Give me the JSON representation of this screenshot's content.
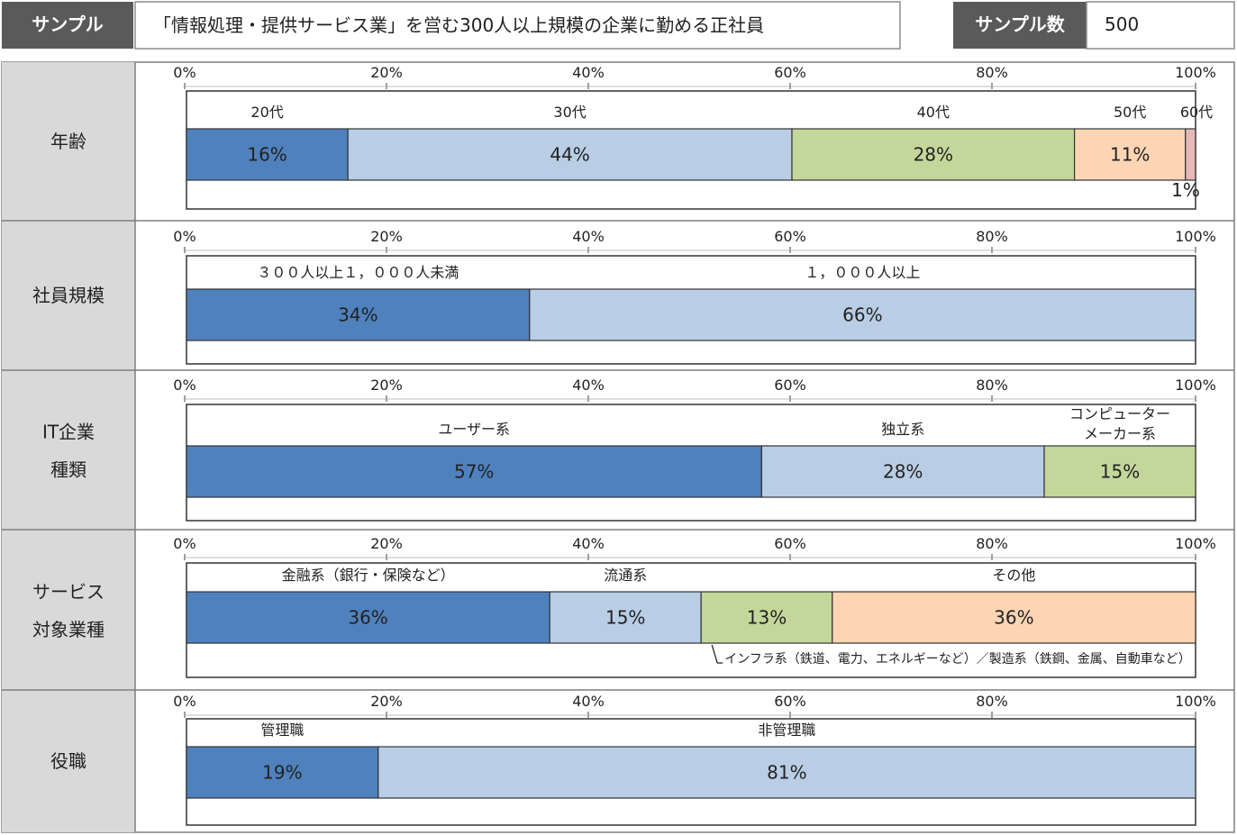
{
  "header": {
    "sample_label": "サンプル",
    "sample_desc": "「情報処理・提供サービス業」を営む300人以上規模の企業に勤める正社員",
    "count_label": "サンプル数",
    "count_value": "500"
  },
  "colors": {
    "dark_gray": "#5a5a5a",
    "label_bg": "#d9d9d9",
    "blue": "#4f81bd",
    "light_blue": "#b9cde5",
    "green": "#c4d79b",
    "peach": "#fcd5b5",
    "pink": "#e6b9b8"
  },
  "chart_data": [
    {
      "type": "bar",
      "orientation": "horizontal-stacked-100",
      "row_label": [
        "年齢"
      ],
      "axis_ticks": [
        "0%",
        "20%",
        "40%",
        "60%",
        "80%",
        "100%"
      ],
      "series": [
        {
          "name": "20代",
          "value": 16,
          "label": "16%",
          "color": "#4f81bd"
        },
        {
          "name": "30代",
          "value": 44,
          "label": "44%",
          "color": "#b9cde5"
        },
        {
          "name": "40代",
          "value": 28,
          "label": "28%",
          "color": "#c4d79b"
        },
        {
          "name": "50代",
          "value": 11,
          "label": "11%",
          "color": "#fcd5b5"
        },
        {
          "name": "60代",
          "value": 1,
          "label": "1%",
          "color": "#e6b9b8"
        }
      ]
    },
    {
      "type": "bar",
      "orientation": "horizontal-stacked-100",
      "row_label": [
        "社員規模"
      ],
      "axis_ticks": [
        "0%",
        "20%",
        "40%",
        "60%",
        "80%",
        "100%"
      ],
      "series": [
        {
          "name": "３００人以上１，０００人未満",
          "value": 34,
          "label": "34%",
          "color": "#4f81bd"
        },
        {
          "name": "１，０００人以上",
          "value": 66,
          "label": "66%",
          "color": "#b9cde5"
        }
      ]
    },
    {
      "type": "bar",
      "orientation": "horizontal-stacked-100",
      "row_label": [
        "IT企業",
        "種類"
      ],
      "axis_ticks": [
        "0%",
        "20%",
        "40%",
        "60%",
        "80%",
        "100%"
      ],
      "series": [
        {
          "name": "ユーザー系",
          "value": 57,
          "label": "57%",
          "color": "#4f81bd"
        },
        {
          "name": "独立系",
          "value": 28,
          "label": "28%",
          "color": "#b9cde5"
        },
        {
          "name": "コンピューター\nメーカー系",
          "value": 15,
          "label": "15%",
          "color": "#c4d79b"
        }
      ]
    },
    {
      "type": "bar",
      "orientation": "horizontal-stacked-100",
      "row_label": [
        "サービス",
        "対象業種"
      ],
      "axis_ticks": [
        "0%",
        "20%",
        "40%",
        "60%",
        "80%",
        "100%"
      ],
      "series": [
        {
          "name": "金融系（銀行・保険など）",
          "value": 36,
          "label": "36%",
          "color": "#4f81bd"
        },
        {
          "name": "流通系",
          "value": 15,
          "label": "15%",
          "color": "#b9cde5"
        },
        {
          "name": "",
          "value": 13,
          "label": "13%",
          "color": "#c4d79b"
        },
        {
          "name": "その他",
          "value": 36,
          "label": "36%",
          "color": "#fcd5b5"
        }
      ],
      "annotation": "インフラ系（鉄道、電力、エネルギーなど）／製造系（鉄鋼、金属、自動車など）"
    },
    {
      "type": "bar",
      "orientation": "horizontal-stacked-100",
      "row_label": [
        "役職"
      ],
      "axis_ticks": [
        "0%",
        "20%",
        "40%",
        "60%",
        "80%",
        "100%"
      ],
      "series": [
        {
          "name": "管理職",
          "value": 19,
          "label": "19%",
          "color": "#4f81bd"
        },
        {
          "name": "非管理職",
          "value": 81,
          "label": "81%",
          "color": "#b9cde5"
        }
      ]
    }
  ]
}
